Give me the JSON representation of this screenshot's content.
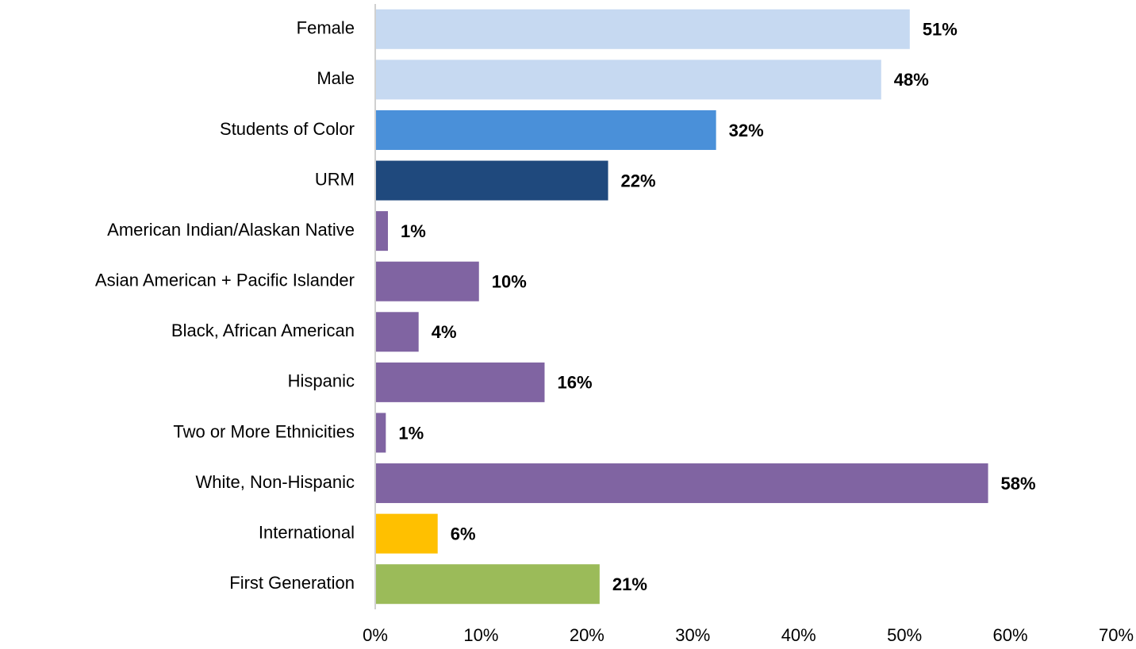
{
  "chart_data": {
    "type": "bar",
    "orientation": "horizontal",
    "categories": [
      "Female",
      "Male",
      "Students of Color",
      "URM",
      "American Indian/Alaskan Native",
      "Asian American + Pacific Islander",
      "Black, African American",
      "Hispanic",
      "Two or More Ethnicities",
      "White, Non-Hispanic",
      "International",
      "First Generation"
    ],
    "values": [
      50.5,
      47.8,
      32.2,
      22.0,
      1.2,
      9.8,
      4.1,
      16.0,
      1.0,
      57.9,
      5.9,
      21.2
    ],
    "value_labels": [
      "51%",
      "48%",
      "32%",
      "22%",
      "1%",
      "10%",
      "4%",
      "16%",
      "1%",
      "58%",
      "6%",
      "21%"
    ],
    "colors": [
      "#c6d9f1",
      "#c6d9f1",
      "#4a90d9",
      "#1f497d",
      "#8064a2",
      "#8064a2",
      "#8064a2",
      "#8064a2",
      "#8064a2",
      "#8064a2",
      "#ffc000",
      "#9bbb59"
    ],
    "xlim": [
      0,
      70
    ],
    "xticks": [
      {
        "value": 0,
        "label": "0%"
      },
      {
        "value": 10,
        "label": "10%"
      },
      {
        "value": 20,
        "label": "20%"
      },
      {
        "value": 30,
        "label": "30%"
      },
      {
        "value": 40,
        "label": "40%"
      },
      {
        "value": 50,
        "label": "50%"
      },
      {
        "value": 60,
        "label": "60%"
      },
      {
        "value": 70,
        "label": "70%"
      }
    ],
    "grid": false
  }
}
